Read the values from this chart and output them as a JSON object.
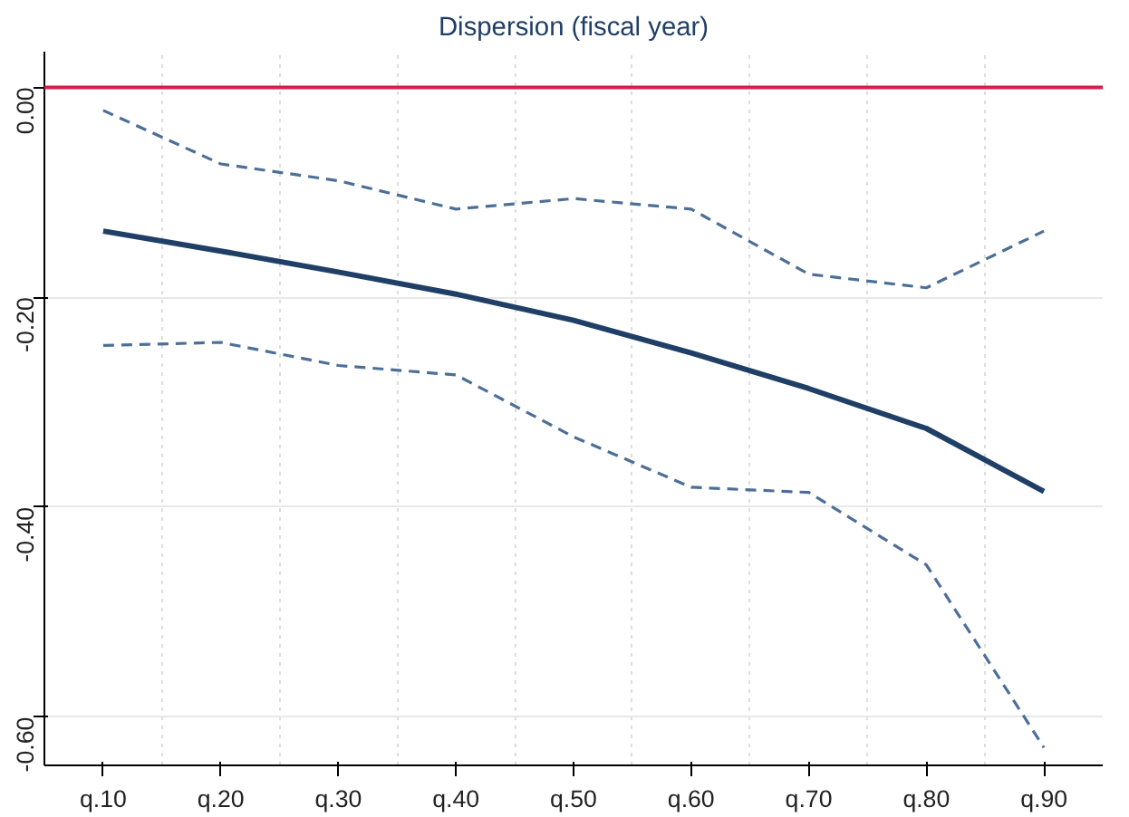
{
  "chart_data": {
    "type": "line",
    "title": "Dispersion (fiscal year)",
    "categories": [
      "q.10",
      "q.20",
      "q.30",
      "q.40",
      "q.50",
      "q.60",
      "q.70",
      "q.80",
      "q.90"
    ],
    "series": [
      {
        "color": "#1f3f66",
        "values": [
          -0.137,
          -0.156,
          -0.176,
          -0.197,
          -0.222,
          -0.253,
          -0.287,
          -0.325,
          -0.385
        ],
        "line_style": "solid"
      },
      {
        "color": "#4d6f97",
        "values": [
          -0.022,
          -0.073,
          -0.089,
          -0.116,
          -0.106,
          -0.116,
          -0.178,
          -0.191,
          -0.137
        ],
        "line_style": "dashed"
      },
      {
        "color": "#4d6f97",
        "values": [
          -0.246,
          -0.243,
          -0.265,
          -0.274,
          -0.333,
          -0.381,
          -0.386,
          -0.455,
          -0.629
        ],
        "line_style": "dashed"
      }
    ],
    "ylim": [
      -0.646,
      0.034
    ],
    "yticks": [
      {
        "value": 0,
        "label": "0.00"
      },
      {
        "value": -0.2,
        "label": "-0.20"
      },
      {
        "value": -0.4,
        "label": "-0.40"
      },
      {
        "value": -0.6,
        "label": "-0.60"
      }
    ],
    "ref_lines": [
      {
        "axis": "y",
        "value": 0,
        "color": "#d81e4a"
      }
    ],
    "grid": true
  }
}
